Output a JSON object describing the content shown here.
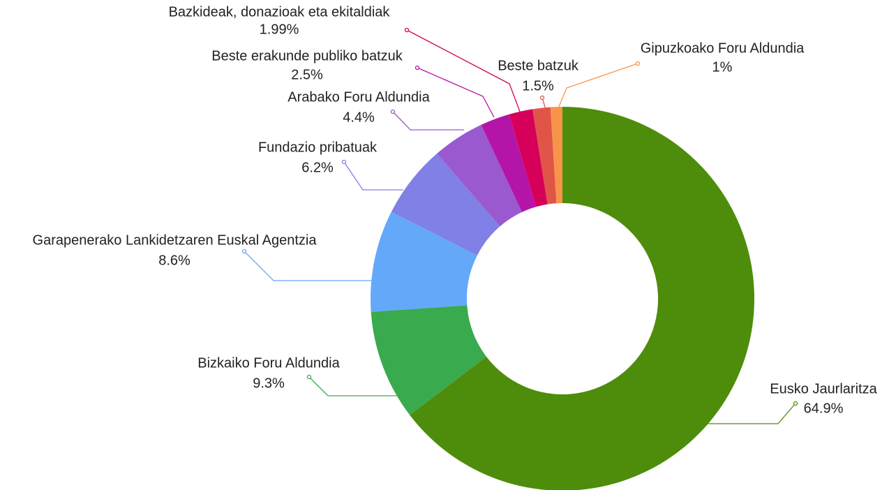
{
  "chart_data": {
    "type": "donut",
    "categories": [
      "Eusko Jaurlaritza",
      "Bizkaiko Foru Aldundia",
      "Garapenerako Lankidetzaren Euskal Agentzia",
      "Fundazio pribatuak",
      "Arabako Foru Aldundia",
      "Beste erakunde publiko batzuk",
      "Bazkideak, donazioak eta ekitaldiak",
      "Beste batzuk",
      "Gipuzkoako Foru Aldundia"
    ],
    "values": [
      64.9,
      9.3,
      8.6,
      6.2,
      4.4,
      2.5,
      1.99,
      1.5,
      1
    ],
    "value_labels": [
      "64.9%",
      "9.3%",
      "8.6%",
      "6.2%",
      "4.4%",
      "2.5%",
      "1.99%",
      "1.5%",
      "1%"
    ],
    "colors": [
      "#4e8c0c",
      "#3aaa4e",
      "#64a8fa",
      "#8080e6",
      "#9b59d0",
      "#b514a8",
      "#d6005a",
      "#e05548",
      "#f7944a"
    ]
  }
}
